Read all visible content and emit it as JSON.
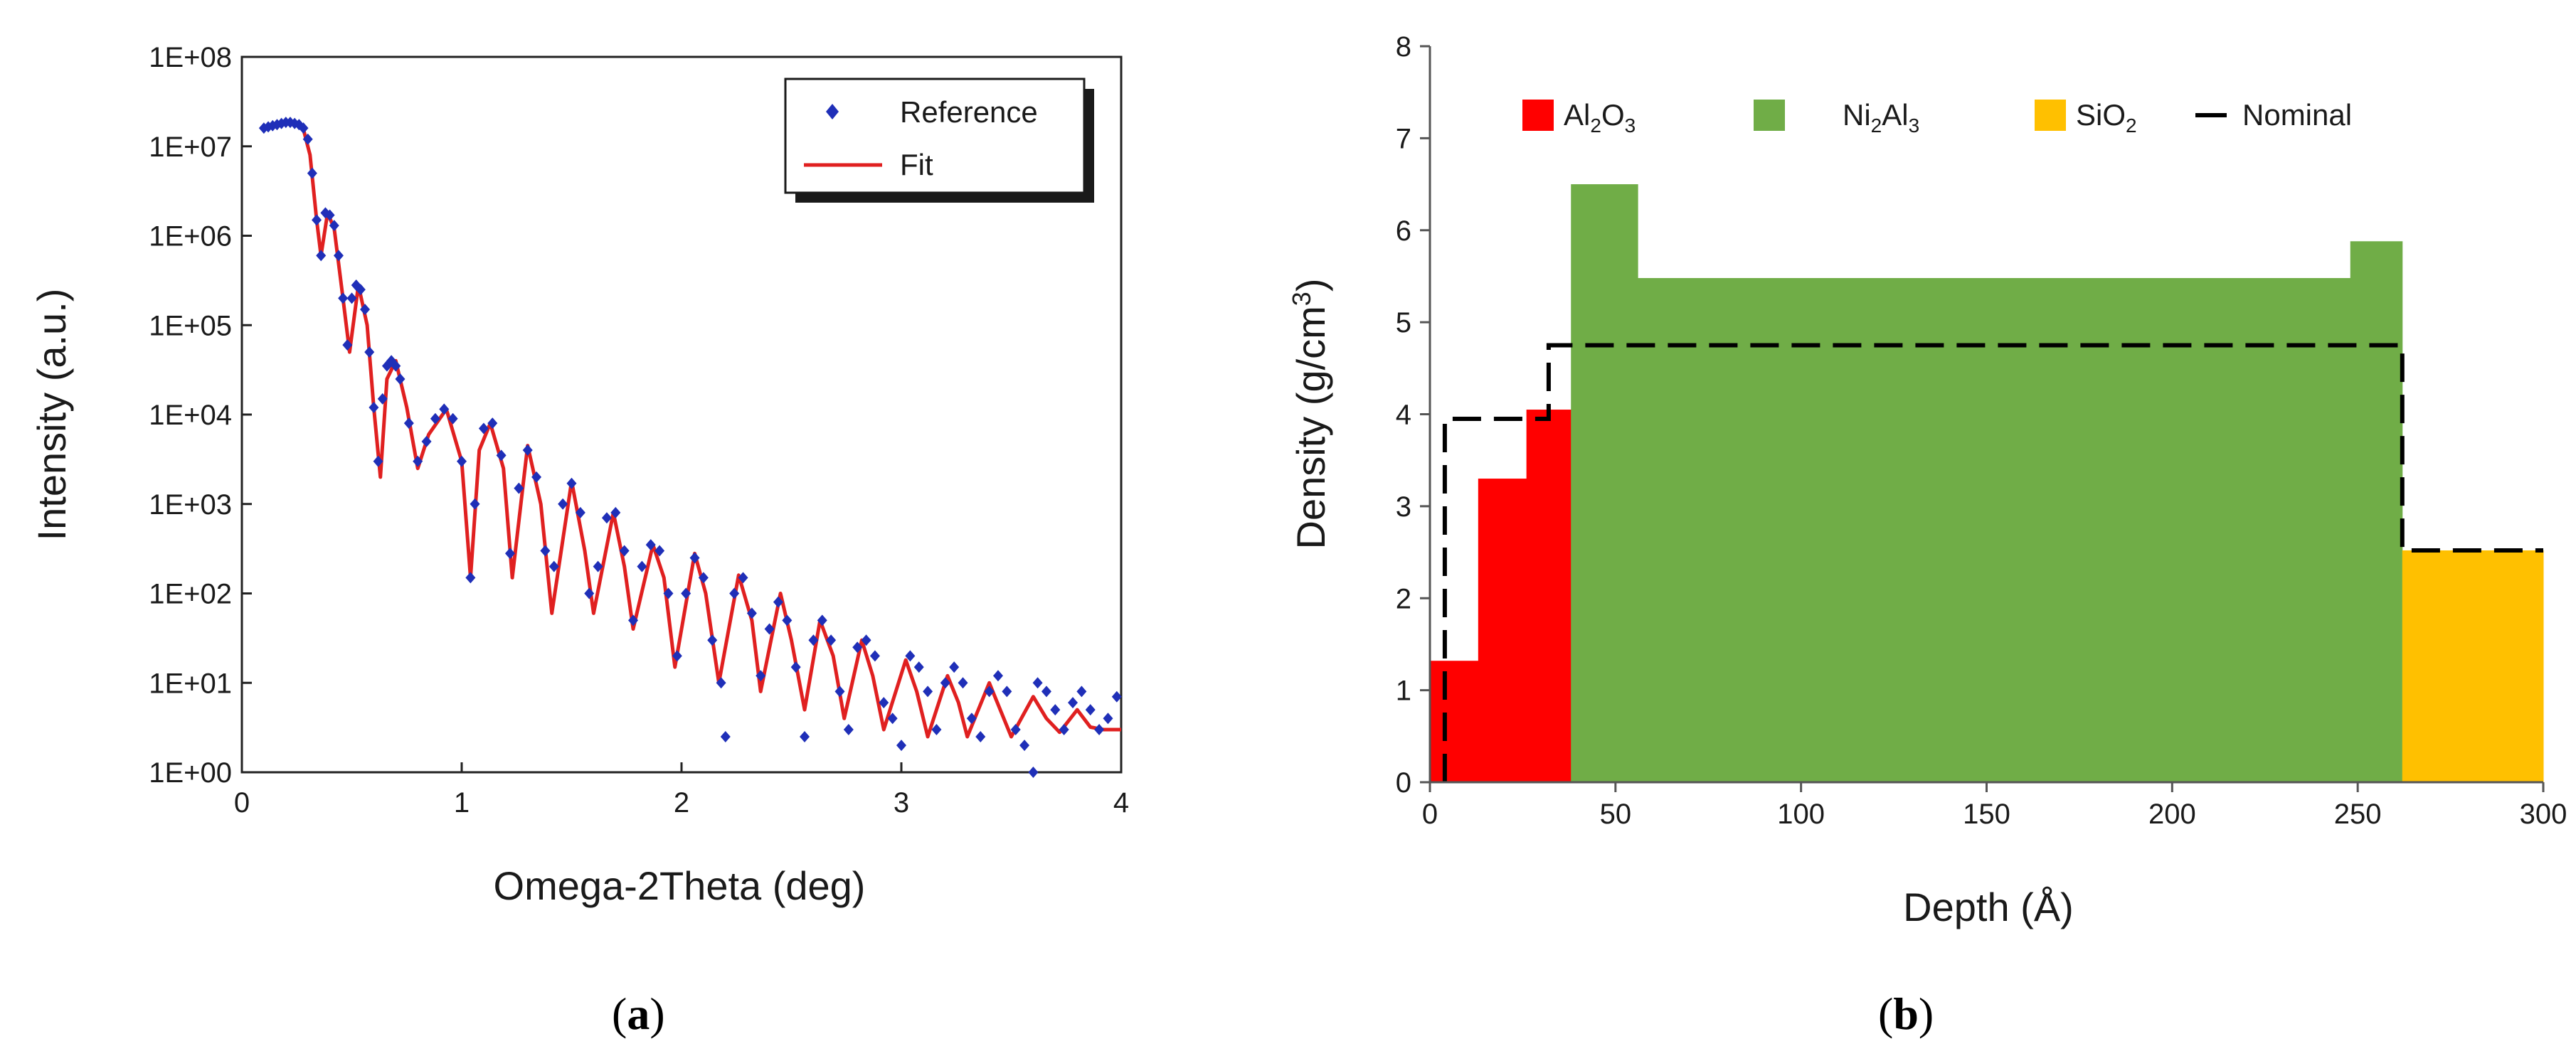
{
  "chart_data": [
    {
      "type": "scatter",
      "panel_label": "a",
      "xlabel": "Omega-2Theta (deg)",
      "ylabel": "Intensity (a.u.)",
      "xlim": [
        0,
        4
      ],
      "ylim": [
        1,
        100000000
      ],
      "yscale": "log",
      "grid": false,
      "legend_position": "top-right",
      "x_ticks": [
        "0",
        "1",
        "2",
        "3",
        "4"
      ],
      "y_ticks": [
        "1E+00",
        "1E+01",
        "1E+02",
        "1E+03",
        "1E+04",
        "1E+05",
        "1E+06",
        "1E+07",
        "1E+08"
      ],
      "colors": {
        "reference": "#1f2fb8",
        "fit": "#e02020"
      },
      "series": [
        {
          "name": "Reference",
          "style": "markers",
          "points": [
            [
              0.1,
              16000000.0
            ],
            [
              0.12,
              16500000.0
            ],
            [
              0.14,
              17000000.0
            ],
            [
              0.16,
              17500000.0
            ],
            [
              0.18,
              18000000.0
            ],
            [
              0.2,
              18500000.0
            ],
            [
              0.22,
              18500000.0
            ],
            [
              0.24,
              18000000.0
            ],
            [
              0.26,
              17500000.0
            ],
            [
              0.28,
              16000000.0
            ],
            [
              0.3,
              12000000.0
            ],
            [
              0.32,
              5000000.0
            ],
            [
              0.34,
              1500000.0
            ],
            [
              0.36,
              600000.0
            ],
            [
              0.38,
              1800000.0
            ],
            [
              0.4,
              1700000.0
            ],
            [
              0.42,
              1300000.0
            ],
            [
              0.44,
              600000.0
            ],
            [
              0.46,
              200000.0
            ],
            [
              0.48,
              60000.0
            ],
            [
              0.5,
              200000.0
            ],
            [
              0.52,
              280000.0
            ],
            [
              0.54,
              250000.0
            ],
            [
              0.56,
              150000.0
            ],
            [
              0.58,
              50000.0
            ],
            [
              0.6,
              12000.0
            ],
            [
              0.62,
              3000.0
            ],
            [
              0.64,
              15000.0
            ],
            [
              0.66,
              35000.0
            ],
            [
              0.68,
              40000.0
            ],
            [
              0.7,
              35000.0
            ],
            [
              0.72,
              25000.0
            ],
            [
              0.76,
              8000.0
            ],
            [
              0.8,
              3000.0
            ],
            [
              0.84,
              5000.0
            ],
            [
              0.88,
              9000.0
            ],
            [
              0.92,
              11500.0
            ],
            [
              0.96,
              9000.0
            ],
            [
              1.0,
              3000.0
            ],
            [
              1.04,
              150.0
            ],
            [
              1.06,
              1000.0
            ],
            [
              1.1,
              7000.0
            ],
            [
              1.14,
              8000.0
            ],
            [
              1.18,
              3500.0
            ],
            [
              1.22,
              280.0
            ],
            [
              1.26,
              1500.0
            ],
            [
              1.3,
              4000.0
            ],
            [
              1.34,
              2000.0
            ],
            [
              1.38,
              300.0
            ],
            [
              1.42,
              200.0
            ],
            [
              1.46,
              1000.0
            ],
            [
              1.5,
              1700.0
            ],
            [
              1.54,
              800.0
            ],
            [
              1.58,
              100.0
            ],
            [
              1.62,
              200.0
            ],
            [
              1.66,
              700.0
            ],
            [
              1.7,
              800.0
            ],
            [
              1.74,
              300.0
            ],
            [
              1.78,
              50.0
            ],
            [
              1.82,
              200.0
            ],
            [
              1.86,
              350.0
            ],
            [
              1.9,
              300.0
            ],
            [
              1.94,
              100.0
            ],
            [
              1.98,
              20.0
            ],
            [
              2.02,
              100.0
            ],
            [
              2.06,
              250.0
            ],
            [
              2.1,
              150.0
            ],
            [
              2.14,
              30.0
            ],
            [
              2.18,
              10.0
            ],
            [
              2.2,
              2.5
            ],
            [
              2.24,
              100.0
            ],
            [
              2.28,
              150.0
            ],
            [
              2.32,
              60.0
            ],
            [
              2.36,
              12.0
            ],
            [
              2.4,
              40.0
            ],
            [
              2.44,
              80.0
            ],
            [
              2.48,
              50.0
            ],
            [
              2.52,
              15.0
            ],
            [
              2.56,
              2.5
            ],
            [
              2.6,
              30.0
            ],
            [
              2.64,
              50.0
            ],
            [
              2.68,
              30.0
            ],
            [
              2.72,
              8
            ],
            [
              2.76,
              3
            ],
            [
              2.8,
              25.0
            ],
            [
              2.84,
              30.0
            ],
            [
              2.88,
              20.0
            ],
            [
              2.92,
              6
            ],
            [
              2.96,
              4
            ],
            [
              3.0,
              2
            ],
            [
              3.04,
              20.0
            ],
            [
              3.08,
              15.0
            ],
            [
              3.12,
              8
            ],
            [
              3.16,
              3
            ],
            [
              3.2,
              10.0
            ],
            [
              3.24,
              15.0
            ],
            [
              3.28,
              10.0
            ],
            [
              3.32,
              4
            ],
            [
              3.36,
              2.5
            ],
            [
              3.4,
              8
            ],
            [
              3.44,
              12.0
            ],
            [
              3.48,
              8
            ],
            [
              3.52,
              3
            ],
            [
              3.56,
              2
            ],
            [
              3.6,
              1
            ],
            [
              3.62,
              10.0
            ],
            [
              3.66,
              8
            ],
            [
              3.7,
              5
            ],
            [
              3.74,
              3
            ],
            [
              3.78,
              6
            ],
            [
              3.82,
              8
            ],
            [
              3.86,
              5
            ],
            [
              3.9,
              3
            ],
            [
              3.94,
              4
            ],
            [
              3.98,
              7
            ]
          ]
        },
        {
          "name": "Fit",
          "style": "line",
          "points": [
            [
              0.1,
              16000000.0
            ],
            [
              0.15,
              17200000.0
            ],
            [
              0.2,
              18500000.0
            ],
            [
              0.25,
              18000000.0
            ],
            [
              0.28,
              15500000.0
            ],
            [
              0.31,
              8000000.0
            ],
            [
              0.34,
              1500000.0
            ],
            [
              0.36,
              600000.0
            ],
            [
              0.39,
              1800000.0
            ],
            [
              0.42,
              1200000.0
            ],
            [
              0.46,
              200000.0
            ],
            [
              0.49,
              50000.0
            ],
            [
              0.53,
              280000.0
            ],
            [
              0.57,
              100000.0
            ],
            [
              0.6,
              12000.0
            ],
            [
              0.63,
              2000.0
            ],
            [
              0.66,
              25000.0
            ],
            [
              0.7,
              40000.0
            ],
            [
              0.75,
              12000.0
            ],
            [
              0.8,
              2500.0
            ],
            [
              0.85,
              6000.0
            ],
            [
              0.93,
              11500.0
            ],
            [
              1.0,
              3000.0
            ],
            [
              1.04,
              150.0
            ],
            [
              1.08,
              4000.0
            ],
            [
              1.13,
              8000.0
            ],
            [
              1.19,
              2500.0
            ],
            [
              1.23,
              150.0
            ],
            [
              1.3,
              4500.0
            ],
            [
              1.36,
              1000.0
            ],
            [
              1.41,
              60.0
            ],
            [
              1.5,
              1800.0
            ],
            [
              1.56,
              300.0
            ],
            [
              1.6,
              60.0
            ],
            [
              1.69,
              800.0
            ],
            [
              1.74,
              200.0
            ],
            [
              1.78,
              40.0
            ],
            [
              1.87,
              350.0
            ],
            [
              1.92,
              150.0
            ],
            [
              1.97,
              15.0
            ],
            [
              2.06,
              280.0
            ],
            [
              2.11,
              100.0
            ],
            [
              2.17,
              10.0
            ],
            [
              2.26,
              160.0
            ],
            [
              2.32,
              50.0
            ],
            [
              2.36,
              8
            ],
            [
              2.45,
              100.0
            ],
            [
              2.5,
              30.0
            ],
            [
              2.56,
              5
            ],
            [
              2.63,
              50.0
            ],
            [
              2.69,
              20.0
            ],
            [
              2.74,
              4
            ],
            [
              2.82,
              30.0
            ],
            [
              2.87,
              12.0
            ],
            [
              2.92,
              3
            ],
            [
              3.02,
              18.0
            ],
            [
              3.07,
              8
            ],
            [
              3.12,
              2.5
            ],
            [
              3.21,
              12.0
            ],
            [
              3.26,
              6
            ],
            [
              3.3,
              2.5
            ],
            [
              3.4,
              10.0
            ],
            [
              3.45,
              5
            ],
            [
              3.5,
              2.5
            ],
            [
              3.6,
              7
            ],
            [
              3.66,
              4
            ],
            [
              3.72,
              2.8
            ],
            [
              3.8,
              5
            ],
            [
              3.86,
              3.2
            ],
            [
              3.92,
              3
            ],
            [
              4.0,
              3
            ]
          ]
        }
      ]
    },
    {
      "type": "area",
      "panel_label": "b",
      "xlabel": "Depth (Å)",
      "ylabel": "Density (g/cm³)",
      "xlim": [
        0,
        300
      ],
      "ylim": [
        0,
        8
      ],
      "grid": false,
      "legend_position": "top",
      "x_ticks": [
        "0",
        "50",
        "100",
        "150",
        "200",
        "250",
        "300"
      ],
      "y_ticks": [
        "0",
        "1",
        "2",
        "3",
        "4",
        "5",
        "6",
        "7",
        "8"
      ],
      "colors": {
        "Al2O3": "#ff0000",
        "Ni2Al3": "#70ad47",
        "SiO2": "#ffc000",
        "Nominal": "#000000"
      },
      "series": [
        {
          "name": "Al2O3",
          "segments": [
            {
              "x0": 0,
              "x1": 13,
              "value": 1.32
            },
            {
              "x0": 13,
              "x1": 26,
              "value": 3.3
            },
            {
              "x0": 26,
              "x1": 38,
              "value": 4.05
            }
          ]
        },
        {
          "name": "Ni2Al3",
          "segments": [
            {
              "x0": 38,
              "x1": 56,
              "value": 6.5
            },
            {
              "x0": 56,
              "x1": 248,
              "value": 5.48
            },
            {
              "x0": 248,
              "x1": 262,
              "value": 5.88
            }
          ]
        },
        {
          "name": "SiO2",
          "segments": [
            {
              "x0": 262,
              "x1": 300,
              "value": 2.52
            }
          ]
        },
        {
          "name": "Nominal",
          "style": "dashed-step",
          "points": [
            [
              4,
              0
            ],
            [
              4,
              3.95
            ],
            [
              32,
              3.95
            ],
            [
              32,
              4.75
            ],
            [
              262,
              4.75
            ],
            [
              262,
              2.52
            ],
            [
              300,
              2.52
            ]
          ]
        }
      ]
    }
  ],
  "legend_a": {
    "reference_label": "Reference",
    "fit_label": "Fit"
  },
  "legend_b": {
    "al2o3": {
      "base1": "Al",
      "sub1": "2",
      "base2": "O",
      "sub2": "3"
    },
    "ni2al3": {
      "base1": "Ni",
      "sub1": "2",
      "base2": "Al",
      "sub2": "3"
    },
    "sio2": {
      "base1": "SiO",
      "sub1": "2"
    },
    "nominal": "Nominal"
  },
  "axis_labels": {
    "a_x": "Omega-2Theta (deg)",
    "a_y": "Intensity (a.u.)",
    "b_x": "Depth (Å)",
    "b_y_main": "Density (g/cm",
    "b_y_sup": "3",
    "b_y_close": ")"
  },
  "captions": {
    "a_open": "(",
    "a_letter": "a",
    "a_close": ")",
    "b_open": "(",
    "b_letter": "b",
    "b_close": ")"
  }
}
